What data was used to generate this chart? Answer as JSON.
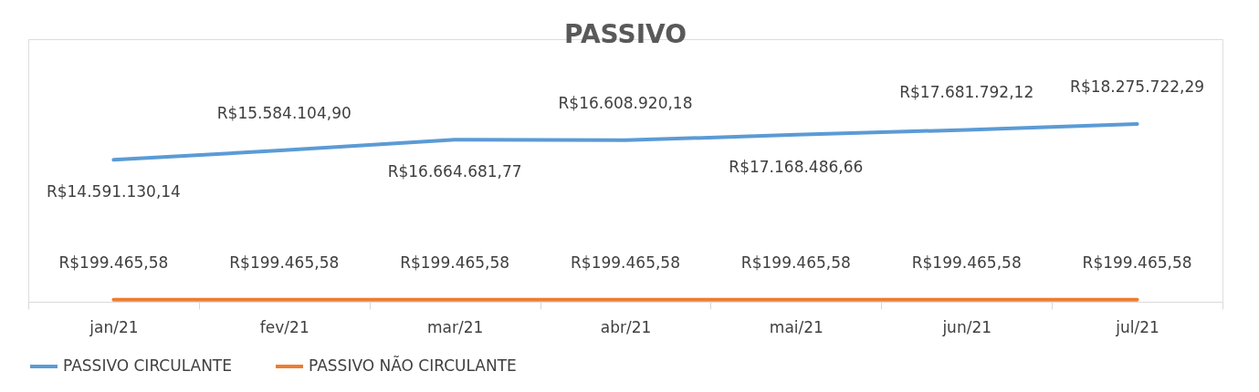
{
  "chart_data": {
    "type": "line",
    "title": "PASSIVO",
    "categories": [
      "jan/21",
      "fev/21",
      "mar/21",
      "abr/21",
      "mai/21",
      "jun/21",
      "jul/21"
    ],
    "series": [
      {
        "name": "PASSIVO CIRCULANTE",
        "color": "#5b9bd5",
        "values": [
          14591130.14,
          15584104.9,
          16664681.77,
          16608920.18,
          17168486.66,
          17681792.12,
          18275722.29
        ],
        "value_labels": [
          "R$14.591.130,14",
          "R$15.584.104,90",
          "R$16.664.681,77",
          "R$16.608.920,18",
          "R$17.168.486,66",
          "R$17.681.792,12",
          "R$18.275.722,29"
        ]
      },
      {
        "name": "PASSIVO NÃO CIRCULANTE",
        "color": "#ed7d31",
        "values": [
          199465.58,
          199465.58,
          199465.58,
          199465.58,
          199465.58,
          199465.58,
          199465.58
        ],
        "value_labels": [
          "R$199.465,58",
          "R$199.465,58",
          "R$199.465,58",
          "R$199.465,58",
          "R$199.465,58",
          "R$199.465,58",
          "R$199.465,58"
        ]
      }
    ],
    "ylim": [
      0,
      27000000
    ],
    "tick_labels": "x",
    "grid": false,
    "legend": "bottom",
    "marker": "none",
    "line_style": "solid"
  }
}
